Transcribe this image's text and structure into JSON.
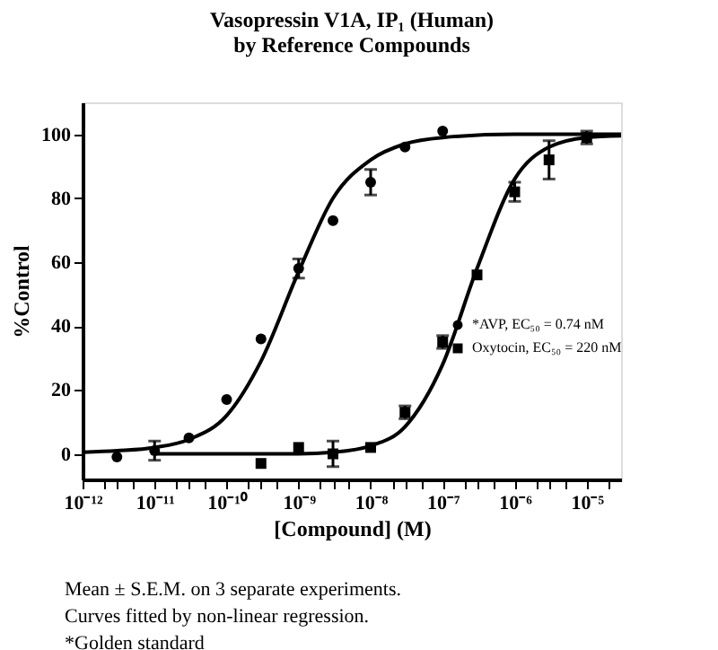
{
  "chart_data": {
    "type": "scatter",
    "title": "Vasopressin V1A, IP₁ (Human)",
    "subtitle": "by Reference Compounds",
    "xlabel": "[Compound] (M)",
    "ylabel": "%Control",
    "log": "x",
    "xlim": [
      1e-12,
      3e-05
    ],
    "ylim": [
      -8,
      110
    ],
    "yticks": [
      0,
      20,
      40,
      60,
      80,
      100
    ],
    "xticks": [
      {
        "value": 1e-12,
        "label": "10⁻¹²"
      },
      {
        "value": 2e-12,
        "label": null
      },
      {
        "value": 3e-12,
        "label": null
      },
      {
        "value": 5e-12,
        "label": null
      },
      {
        "value": 1e-11,
        "label": "10⁻¹¹"
      },
      {
        "value": 2e-11,
        "label": null
      },
      {
        "value": 3e-11,
        "label": null
      },
      {
        "value": 5e-11,
        "label": null
      },
      {
        "value": 1e-10,
        "label": "10⁻¹⁰"
      },
      {
        "value": 2e-10,
        "label": null
      },
      {
        "value": 3e-10,
        "label": null
      },
      {
        "value": 5e-10,
        "label": null
      },
      {
        "value": 1e-09,
        "label": "10⁻⁹"
      },
      {
        "value": 2e-09,
        "label": null
      },
      {
        "value": 3e-09,
        "label": null
      },
      {
        "value": 5e-09,
        "label": null
      },
      {
        "value": 1e-08,
        "label": "10⁻⁸"
      },
      {
        "value": 2e-08,
        "label": null
      },
      {
        "value": 3e-08,
        "label": null
      },
      {
        "value": 5e-08,
        "label": null
      },
      {
        "value": 1e-07,
        "label": "10⁻⁷"
      },
      {
        "value": 2e-07,
        "label": null
      },
      {
        "value": 3e-07,
        "label": null
      },
      {
        "value": 5e-07,
        "label": null
      },
      {
        "value": 1e-06,
        "label": "10⁻⁶"
      },
      {
        "value": 2e-06,
        "label": null
      },
      {
        "value": 3e-06,
        "label": null
      },
      {
        "value": 5e-06,
        "label": null
      },
      {
        "value": 1e-05,
        "label": "10⁻⁵"
      },
      {
        "value": 2e-05,
        "label": null
      }
    ],
    "grid": false,
    "legend": "right",
    "series": [
      {
        "name": "*AVP, EC₅₀ = 0.74 nM",
        "marker": "circle",
        "color": "#000000",
        "x": [
          3e-12,
          1e-11,
          3e-11,
          1e-10,
          3e-10,
          1e-09,
          3e-09,
          1e-08,
          3e-08,
          1e-07
        ],
        "values": [
          -1,
          1,
          5,
          17,
          36,
          58,
          73,
          85,
          96,
          101
        ],
        "errors": [
          null,
          3,
          null,
          null,
          null,
          3,
          null,
          4,
          null,
          null
        ]
      },
      {
        "name": "Oxytocin, EC₅₀ = 220 nM",
        "marker": "square",
        "color": "#000000",
        "x": [
          3e-10,
          1e-09,
          3e-09,
          1e-08,
          3e-08,
          1e-07,
          3e-07,
          1e-06,
          3e-06,
          1e-05
        ],
        "values": [
          -3,
          2,
          0,
          2,
          13,
          35,
          56,
          82,
          92,
          99
        ],
        "errors": [
          null,
          null,
          4,
          null,
          2,
          2,
          null,
          3,
          6,
          2
        ]
      },
      {
        "type": "line",
        "color": "#000000",
        "x": [
          1e-12,
          3e-12,
          1e-11,
          3e-11,
          1e-10,
          3e-10,
          1e-09,
          3e-09,
          1e-08,
          3e-08,
          1e-07,
          1e-06,
          3e-05
        ],
        "values": [
          0.5,
          1,
          2,
          4.5,
          12,
          29,
          57,
          80,
          92,
          97,
          99,
          100,
          100
        ]
      },
      {
        "type": "line",
        "color": "#000000",
        "x": [
          1e-11,
          1e-09,
          3e-09,
          1e-08,
          3e-08,
          1e-07,
          3e-07,
          1e-06,
          3e-06,
          1e-05,
          3e-05
        ],
        "values": [
          0,
          0,
          0.5,
          2.5,
          8.5,
          28,
          58,
          86,
          96,
          99,
          99.5
        ]
      }
    ],
    "annotations": [
      "Mean ±  S.E.M. on 3 separate experiments.",
      "Curves fitted by non-linear regression.",
      "*Golden standard"
    ]
  }
}
